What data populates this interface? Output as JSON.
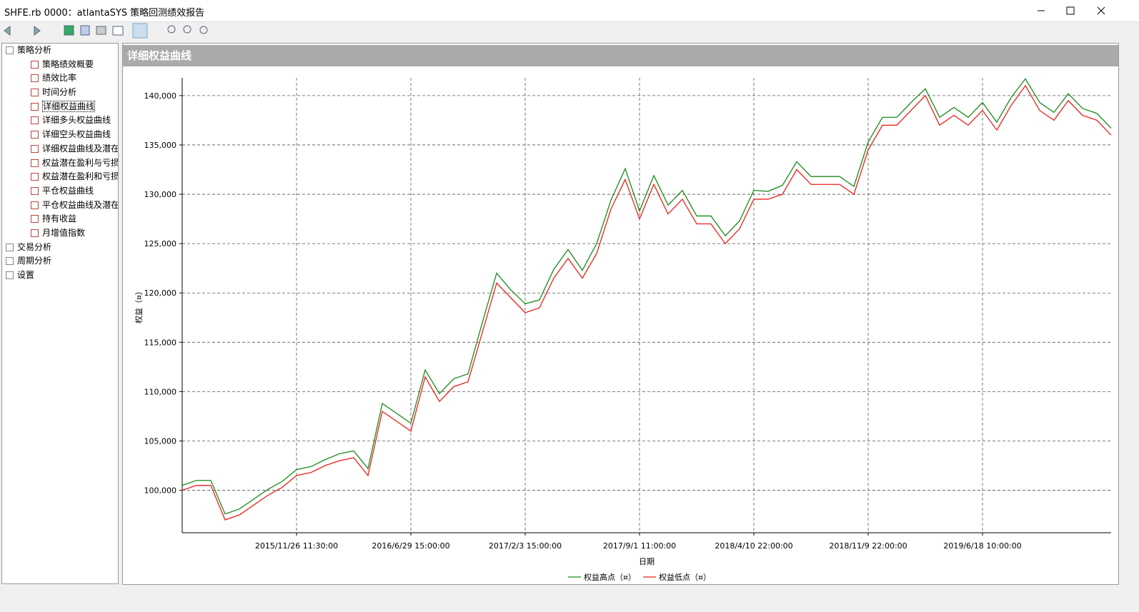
{
  "window": {
    "title": "SHFE.rb 0000：atlantaSYS 策略回测绩效报告"
  },
  "nav": {
    "groups": [
      {
        "label": "策略分析",
        "children": [
          "策略绩效概要",
          "绩效比率",
          "时间分析",
          "详细权益曲线",
          "详细多头权益曲线",
          "详细空头权益曲线",
          "详细权益曲线及潜在",
          "权益潜在盈利与亏损",
          "权益潜在盈利和亏损",
          "平仓权益曲线",
          "平仓权益曲线及潜在",
          "持有收益",
          "月增值指数"
        ]
      },
      {
        "label": "交易分析",
        "children": []
      },
      {
        "label": "周期分析",
        "children": []
      },
      {
        "label": "设置",
        "children": []
      }
    ]
  },
  "panel": {
    "title": "详细权益曲线"
  },
  "chart_data": {
    "type": "line",
    "x_label": "日期",
    "y_label": "权益（¤）",
    "categories": [
      null,
      null,
      null,
      null,
      null,
      null,
      null,
      null,
      "2015/11/26 11:30:00",
      null,
      null,
      null,
      null,
      null,
      null,
      null,
      "2016/6/29 15:00:00",
      null,
      null,
      null,
      null,
      null,
      null,
      null,
      "2017/2/3 15:00:00",
      null,
      null,
      null,
      null,
      null,
      null,
      null,
      "2017/9/1 11:00:00",
      null,
      null,
      null,
      null,
      null,
      null,
      null,
      "2018/4/10 22:00:00",
      null,
      null,
      null,
      null,
      null,
      null,
      null,
      "2018/11/9 22:00:00",
      null,
      null,
      null,
      null,
      null,
      null,
      null,
      "2019/6/18 10:00:00",
      null,
      null,
      null,
      null,
      null,
      null,
      null,
      null,
      null
    ],
    "series": [
      {
        "name": "权益高点（¤）",
        "color": "#1a8a1a",
        "values": [
          100500,
          101000,
          101000,
          97600,
          98100,
          99100,
          100100,
          100900,
          102100,
          102400,
          103100,
          103700,
          104000,
          102200,
          108800,
          107800,
          106800,
          112200,
          109800,
          111300,
          111800,
          117000,
          122000,
          120300,
          118900,
          119300,
          122400,
          124400,
          122300,
          125000,
          129400,
          132600,
          128300,
          131900,
          128900,
          130400,
          127800,
          127800,
          125800,
          127300,
          130400,
          130300,
          130900,
          133300,
          131800,
          131800,
          131800,
          130800,
          135300,
          137800,
          137800,
          139300,
          140700,
          137800,
          138800,
          137800,
          139300,
          137300,
          139800,
          141700,
          139300,
          138300,
          140200,
          138700,
          138200,
          136700
        ]
      },
      {
        "name": "权益低点（¤）",
        "color": "#e8221a",
        "values": [
          100000,
          100500,
          100500,
          97000,
          97500,
          98500,
          99500,
          100300,
          101500,
          101800,
          102500,
          103000,
          103300,
          101500,
          108000,
          107000,
          106000,
          111500,
          109000,
          110500,
          111000,
          116000,
          121000,
          119500,
          118000,
          118500,
          121500,
          123500,
          121500,
          124000,
          128500,
          131500,
          127500,
          131000,
          128000,
          129500,
          127000,
          127000,
          125000,
          126500,
          129500,
          129500,
          130000,
          132500,
          131000,
          131000,
          131000,
          130000,
          134500,
          137000,
          137000,
          138500,
          140000,
          137000,
          138000,
          137000,
          138500,
          136500,
          139000,
          141000,
          138500,
          137500,
          139500,
          138000,
          137500,
          136000
        ]
      }
    ],
    "ylim": [
      95700,
      141800
    ],
    "yticks": [
      {
        "value": 100000,
        "label": "100,000"
      },
      {
        "value": 105000,
        "label": "105,000"
      },
      {
        "value": 110000,
        "label": "110,000"
      },
      {
        "value": 115000,
        "label": "115,000"
      },
      {
        "value": 120000,
        "label": "120,000"
      },
      {
        "value": 125000,
        "label": "125,000"
      },
      {
        "value": 130000,
        "label": "130,000"
      },
      {
        "value": 135000,
        "label": "135,000"
      },
      {
        "value": 140000,
        "label": "140,000"
      }
    ],
    "grid": true,
    "legend": "bottom"
  }
}
